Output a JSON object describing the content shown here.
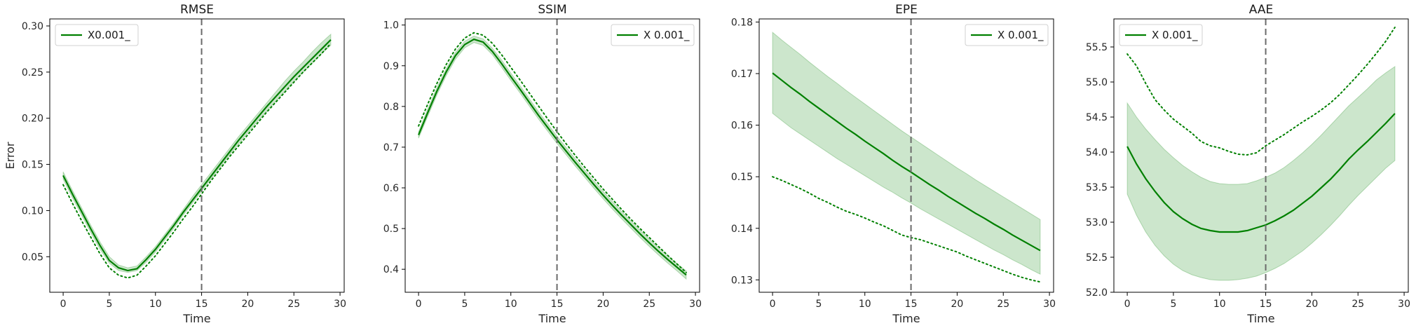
{
  "figure": {
    "line_color": "#008000",
    "band_color": "#008000",
    "vline_color": "#6b6b6b"
  },
  "chart_data": [
    {
      "type": "line",
      "title": "RMSE",
      "xlabel": "Time",
      "ylabel": "Error",
      "xlim": [
        -1.45,
        30.45
      ],
      "ylim": [
        0.0115,
        0.3076
      ],
      "xticks": [
        0,
        5,
        10,
        15,
        20,
        25,
        30
      ],
      "yticks": [
        0.05,
        0.1,
        0.15,
        0.2,
        0.25,
        0.3
      ],
      "ytick_decimals": 2,
      "vline_x": 15,
      "legend": {
        "label": "X0.001_",
        "position": "top-left"
      },
      "x": [
        0,
        1,
        2,
        3,
        4,
        5,
        6,
        7,
        8,
        9,
        10,
        11,
        12,
        13,
        14,
        15,
        16,
        17,
        18,
        19,
        20,
        21,
        22,
        23,
        24,
        25,
        26,
        27,
        28,
        29
      ],
      "series": [
        {
          "mean": [
            0.138,
            0.118,
            0.099,
            0.08,
            0.062,
            0.046,
            0.038,
            0.035,
            0.037,
            0.047,
            0.058,
            0.071,
            0.084,
            0.098,
            0.111,
            0.124,
            0.137,
            0.15,
            0.163,
            0.176,
            0.188,
            0.2,
            0.212,
            0.223,
            0.234,
            0.245,
            0.255,
            0.265,
            0.275,
            0.285
          ],
          "lower": [
            0.134,
            0.114,
            0.095,
            0.076,
            0.058,
            0.043,
            0.035,
            0.033,
            0.035,
            0.044,
            0.055,
            0.068,
            0.081,
            0.095,
            0.108,
            0.121,
            0.134,
            0.147,
            0.16,
            0.172,
            0.184,
            0.196,
            0.207,
            0.218,
            0.229,
            0.24,
            0.25,
            0.26,
            0.27,
            0.279
          ],
          "upper": [
            0.142,
            0.122,
            0.103,
            0.084,
            0.066,
            0.05,
            0.041,
            0.038,
            0.04,
            0.05,
            0.061,
            0.074,
            0.087,
            0.101,
            0.115,
            0.128,
            0.141,
            0.154,
            0.167,
            0.18,
            0.192,
            0.204,
            0.216,
            0.228,
            0.24,
            0.251,
            0.261,
            0.272,
            0.282,
            0.291
          ],
          "reference": [
            0.128,
            0.108,
            0.089,
            0.071,
            0.053,
            0.038,
            0.03,
            0.027,
            0.03,
            0.04,
            0.051,
            0.064,
            0.077,
            0.091,
            0.104,
            0.118,
            0.132,
            0.145,
            0.158,
            0.17,
            0.182,
            0.194,
            0.206,
            0.217,
            0.228,
            0.239,
            0.25,
            0.26,
            0.27,
            0.281
          ]
        }
      ]
    },
    {
      "type": "line",
      "title": "SSIM",
      "xlabel": "Time",
      "ylabel": "",
      "xlim": [
        -1.45,
        30.45
      ],
      "ylim": [
        0.3435,
        1.015
      ],
      "xticks": [
        0,
        5,
        10,
        15,
        20,
        25,
        30
      ],
      "yticks": [
        0.4,
        0.5,
        0.6,
        0.7,
        0.8,
        0.9,
        1.0
      ],
      "ytick_decimals": 1,
      "vline_x": 15,
      "legend": {
        "label": "X 0.001_",
        "position": "top-right"
      },
      "x": [
        0,
        1,
        2,
        3,
        4,
        5,
        6,
        7,
        8,
        9,
        10,
        11,
        12,
        13,
        14,
        15,
        16,
        17,
        18,
        19,
        20,
        21,
        22,
        23,
        24,
        25,
        26,
        27,
        28,
        29
      ],
      "series": [
        {
          "mean": [
            0.73,
            0.785,
            0.838,
            0.885,
            0.925,
            0.952,
            0.965,
            0.958,
            0.935,
            0.905,
            0.873,
            0.842,
            0.81,
            0.778,
            0.748,
            0.718,
            0.69,
            0.662,
            0.635,
            0.608,
            0.582,
            0.557,
            0.533,
            0.51,
            0.487,
            0.465,
            0.444,
            0.424,
            0.405,
            0.386
          ],
          "lower": [
            0.722,
            0.776,
            0.829,
            0.876,
            0.916,
            0.944,
            0.957,
            0.95,
            0.927,
            0.896,
            0.864,
            0.833,
            0.801,
            0.769,
            0.739,
            0.709,
            0.681,
            0.653,
            0.626,
            0.599,
            0.573,
            0.548,
            0.524,
            0.501,
            0.478,
            0.456,
            0.435,
            0.415,
            0.396,
            0.376
          ],
          "upper": [
            0.738,
            0.794,
            0.847,
            0.893,
            0.933,
            0.96,
            0.973,
            0.966,
            0.943,
            0.914,
            0.882,
            0.851,
            0.819,
            0.787,
            0.757,
            0.727,
            0.699,
            0.671,
            0.644,
            0.617,
            0.591,
            0.566,
            0.542,
            0.519,
            0.496,
            0.474,
            0.453,
            0.433,
            0.414,
            0.396
          ],
          "reference": [
            0.752,
            0.806,
            0.857,
            0.903,
            0.941,
            0.968,
            0.981,
            0.975,
            0.955,
            0.927,
            0.896,
            0.865,
            0.833,
            0.801,
            0.769,
            0.738,
            0.708,
            0.679,
            0.651,
            0.624,
            0.597,
            0.572,
            0.547,
            0.523,
            0.5,
            0.478,
            0.456,
            0.434,
            0.413,
            0.392
          ]
        }
      ]
    },
    {
      "type": "line",
      "title": "EPE",
      "xlabel": "Time",
      "ylabel": "",
      "xlim": [
        -1.45,
        30.45
      ],
      "ylim": [
        0.1276,
        0.1806
      ],
      "xticks": [
        0,
        5,
        10,
        15,
        20,
        25,
        30
      ],
      "yticks": [
        0.13,
        0.14,
        0.15,
        0.16,
        0.17,
        0.18
      ],
      "ytick_decimals": 2,
      "vline_x": 15,
      "legend": {
        "label": "X 0.001_",
        "position": "top-right"
      },
      "x": [
        0,
        1,
        2,
        3,
        4,
        5,
        6,
        7,
        8,
        9,
        10,
        11,
        12,
        13,
        14,
        15,
        16,
        17,
        18,
        19,
        20,
        21,
        22,
        23,
        24,
        25,
        26,
        27,
        28,
        29
      ],
      "series": [
        {
          "mean": [
            0.1701,
            0.1687,
            0.1673,
            0.166,
            0.1646,
            0.1633,
            0.162,
            0.1607,
            0.1594,
            0.1582,
            0.1569,
            0.1557,
            0.1545,
            0.1532,
            0.152,
            0.1509,
            0.1497,
            0.1485,
            0.1474,
            0.1462,
            0.1451,
            0.144,
            0.1429,
            0.1419,
            0.1408,
            0.1398,
            0.1387,
            0.1377,
            0.1367,
            0.1357
          ],
          "lower": [
            0.1623,
            0.1609,
            0.1595,
            0.1583,
            0.1571,
            0.1559,
            0.1547,
            0.1535,
            0.1524,
            0.1513,
            0.1502,
            0.1491,
            0.148,
            0.147,
            0.1459,
            0.1449,
            0.1438,
            0.1428,
            0.1418,
            0.1408,
            0.1398,
            0.1388,
            0.1378,
            0.1368,
            0.1358,
            0.1349,
            0.1339,
            0.133,
            0.132,
            0.1311
          ],
          "upper": [
            0.178,
            0.1765,
            0.1751,
            0.1737,
            0.1722,
            0.1708,
            0.1694,
            0.1681,
            0.1667,
            0.1654,
            0.1641,
            0.1628,
            0.1615,
            0.1602,
            0.1589,
            0.1577,
            0.1565,
            0.1553,
            0.1541,
            0.1529,
            0.1517,
            0.1506,
            0.1494,
            0.1483,
            0.1472,
            0.1461,
            0.145,
            0.1439,
            0.1428,
            0.1417
          ],
          "reference": [
            0.15,
            0.1493,
            0.1485,
            0.1477,
            0.1468,
            0.1458,
            0.145,
            0.1441,
            0.1433,
            0.1427,
            0.142,
            0.1412,
            0.1405,
            0.1396,
            0.1387,
            0.1382,
            0.1378,
            0.1372,
            0.1366,
            0.136,
            0.1354,
            0.1346,
            0.1339,
            0.1332,
            0.1325,
            0.1318,
            0.1311,
            0.1305,
            0.13,
            0.1296
          ]
        }
      ]
    },
    {
      "type": "line",
      "title": "AAE",
      "xlabel": "Time",
      "ylabel": "",
      "xlim": [
        -1.45,
        30.45
      ],
      "ylim": [
        52.0,
        55.9
      ],
      "xticks": [
        0,
        5,
        10,
        15,
        20,
        25,
        30
      ],
      "yticks": [
        52.0,
        52.5,
        53.0,
        53.5,
        54.0,
        54.5,
        55.0,
        55.5
      ],
      "ytick_decimals": 1,
      "vline_x": 15,
      "legend": {
        "label": "X 0.001_",
        "position": "top-left"
      },
      "x": [
        0,
        1,
        2,
        3,
        4,
        5,
        6,
        7,
        8,
        9,
        10,
        11,
        12,
        13,
        14,
        15,
        16,
        17,
        18,
        19,
        20,
        21,
        22,
        23,
        24,
        25,
        26,
        27,
        28,
        29
      ],
      "series": [
        {
          "mean": [
            54.08,
            53.83,
            53.62,
            53.44,
            53.28,
            53.15,
            53.05,
            52.97,
            52.91,
            52.88,
            52.86,
            52.86,
            52.86,
            52.88,
            52.92,
            52.96,
            53.02,
            53.09,
            53.17,
            53.27,
            53.37,
            53.49,
            53.61,
            53.75,
            53.9,
            54.03,
            54.15,
            54.28,
            54.41,
            54.55
          ],
          "lower": [
            53.4,
            53.1,
            52.86,
            52.67,
            52.52,
            52.4,
            52.31,
            52.25,
            52.21,
            52.18,
            52.17,
            52.17,
            52.18,
            52.2,
            52.23,
            52.28,
            52.34,
            52.41,
            52.5,
            52.59,
            52.7,
            52.82,
            52.95,
            53.09,
            53.24,
            53.38,
            53.51,
            53.64,
            53.77,
            53.88
          ],
          "upper": [
            54.7,
            54.5,
            54.33,
            54.18,
            54.04,
            53.92,
            53.81,
            53.72,
            53.64,
            53.58,
            53.55,
            53.54,
            53.54,
            53.55,
            53.59,
            53.64,
            53.7,
            53.78,
            53.88,
            53.99,
            54.11,
            54.24,
            54.38,
            54.52,
            54.66,
            54.78,
            54.9,
            55.03,
            55.13,
            55.22
          ],
          "reference": [
            55.4,
            55.23,
            54.98,
            54.75,
            54.6,
            54.47,
            54.37,
            54.27,
            54.15,
            54.09,
            54.06,
            54.01,
            53.97,
            53.96,
            53.99,
            54.09,
            54.17,
            54.25,
            54.34,
            54.43,
            54.51,
            54.6,
            54.7,
            54.82,
            54.96,
            55.1,
            55.25,
            55.41,
            55.58,
            55.78
          ]
        }
      ]
    }
  ]
}
